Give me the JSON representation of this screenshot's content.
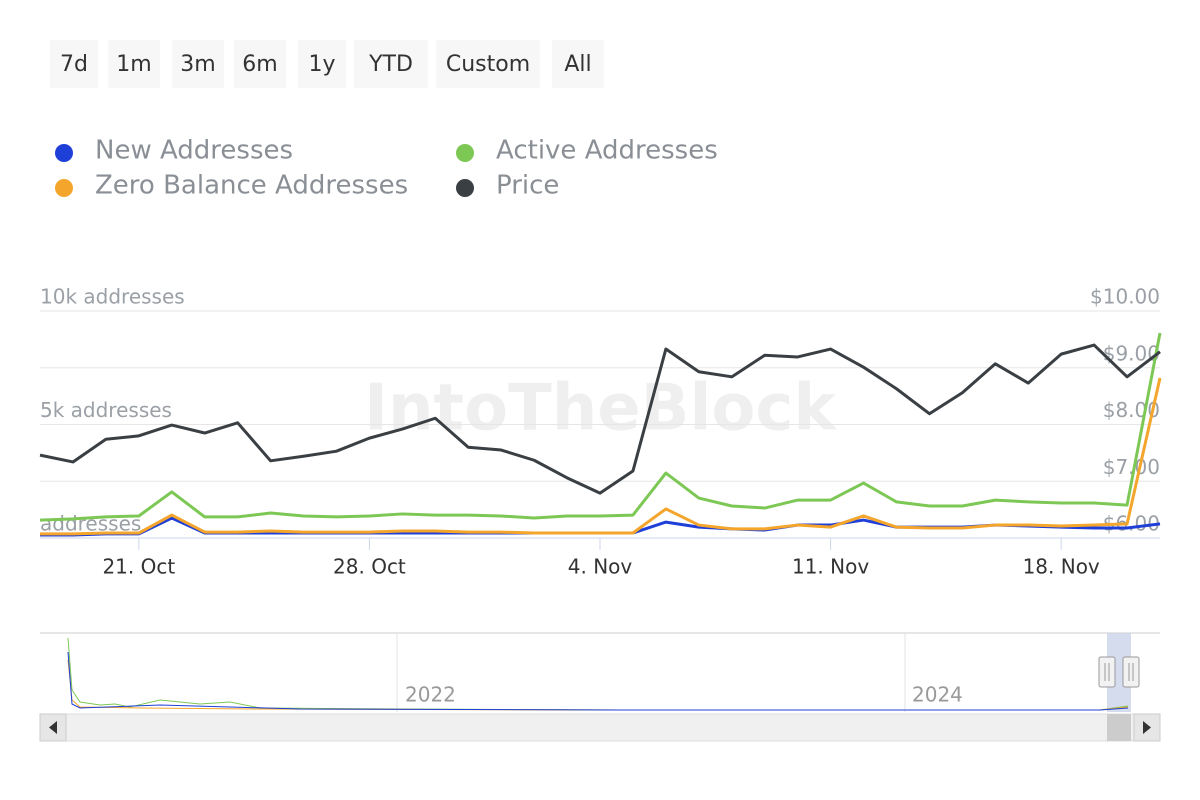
{
  "range_buttons": [
    "7d",
    "1m",
    "3m",
    "6m",
    "1y",
    "YTD",
    "Custom",
    "All"
  ],
  "chart_data": {
    "type": "line",
    "watermark": "IntoTheBlock",
    "categories": [
      null,
      null,
      null,
      "21. Oct",
      null,
      null,
      null,
      null,
      null,
      null,
      "28. Oct",
      null,
      null,
      null,
      null,
      null,
      null,
      "4. Nov",
      null,
      null,
      null,
      null,
      null,
      null,
      "11. Nov",
      null,
      null,
      null,
      null,
      null,
      null,
      "18. Nov",
      null,
      null,
      null
    ],
    "series": [
      {
        "name": "New Addresses",
        "color": "#1f3fd9",
        "values": [
          130,
          130,
          180,
          180,
          880,
          220,
          220,
          220,
          220,
          220,
          220,
          220,
          220,
          220,
          220,
          220,
          220,
          220,
          220,
          700,
          480,
          400,
          350,
          570,
          570,
          790,
          480,
          480,
          480,
          570,
          530,
          480,
          440,
          440,
          620
        ]
      },
      {
        "name": "Active Addresses",
        "color": "#7dc855",
        "values": [
          790,
          840,
          930,
          970,
          2030,
          930,
          930,
          1100,
          970,
          930,
          970,
          1060,
          1010,
          1010,
          970,
          880,
          970,
          970,
          1010,
          2860,
          1760,
          1410,
          1320,
          1670,
          1670,
          2420,
          1590,
          1410,
          1410,
          1670,
          1590,
          1540,
          1540,
          1450,
          9030
        ]
      },
      {
        "name": "Zero Balance Addresses",
        "color": "#f4a52c",
        "values": [
          180,
          180,
          220,
          220,
          1010,
          260,
          260,
          310,
          260,
          260,
          260,
          310,
          310,
          260,
          260,
          220,
          220,
          220,
          220,
          1280,
          570,
          400,
          400,
          570,
          480,
          970,
          480,
          440,
          440,
          570,
          570,
          530,
          570,
          620,
          7050
        ]
      },
      {
        "name": "Price",
        "color": "#3a3f44",
        "axis": "y2",
        "values": [
          7.46,
          7.34,
          7.74,
          7.8,
          7.99,
          7.85,
          8.03,
          7.36,
          7.44,
          7.53,
          7.76,
          7.92,
          8.11,
          7.6,
          7.55,
          7.37,
          7.06,
          6.79,
          7.18,
          9.33,
          8.93,
          8.84,
          9.22,
          9.19,
          9.33,
          9.01,
          8.63,
          8.19,
          8.56,
          9.07,
          8.73,
          9.24,
          9.4,
          8.84,
          9.28
        ]
      }
    ],
    "ylim": [
      0,
      10000
    ],
    "yticks": [
      {
        "value": 0,
        "label": "addresses"
      },
      {
        "value": 5000,
        "label": "5k addresses"
      },
      {
        "value": 10000,
        "label": "10k addresses"
      }
    ],
    "y2lim": [
      6,
      10
    ],
    "y2ticks": [
      {
        "value": 6,
        "label": "$6.00"
      },
      {
        "value": 7,
        "label": "$7.00"
      },
      {
        "value": 8,
        "label": "$8.00"
      },
      {
        "value": 9,
        "label": "$9.00"
      },
      {
        "value": 10,
        "label": "$10.00"
      }
    ],
    "grid": true,
    "navigator_labels": [
      "2022",
      "2024"
    ]
  }
}
